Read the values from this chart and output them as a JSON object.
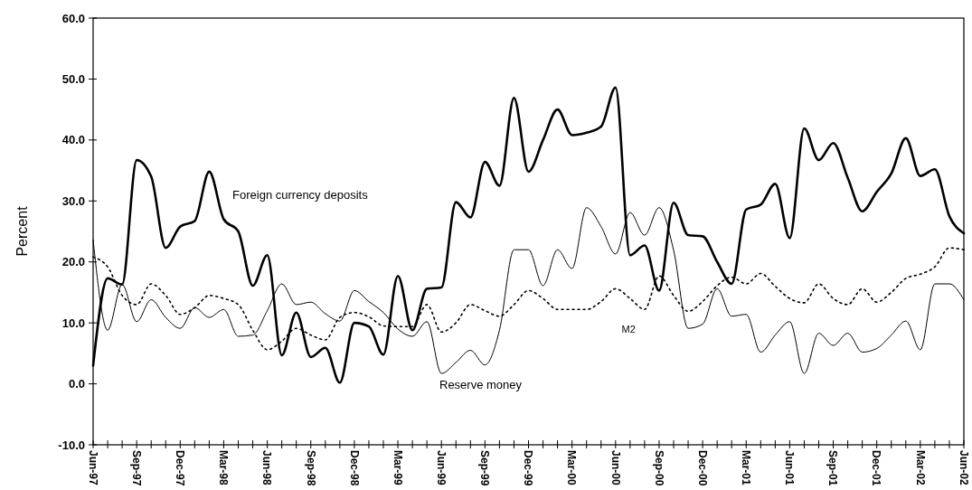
{
  "chart_data": {
    "type": "line",
    "ylabel": "Percent",
    "grid": false,
    "ylim": [
      -10,
      60
    ],
    "yticks": [
      {
        "value": -10,
        "label": "-10.0"
      },
      {
        "value": 0,
        "label": "0.0"
      },
      {
        "value": 10,
        "label": "10.0"
      },
      {
        "value": 20,
        "label": "20.0"
      },
      {
        "value": 30,
        "label": "30.0"
      },
      {
        "value": 40,
        "label": "40.0"
      },
      {
        "value": 50,
        "label": "50.0"
      },
      {
        "value": 60,
        "label": "60.0"
      }
    ],
    "categories": [
      "Jun-97",
      null,
      null,
      "Sep-97",
      null,
      null,
      "Dec-97",
      null,
      null,
      "Mar-98",
      null,
      null,
      "Jun-98",
      null,
      null,
      "Sep-98",
      null,
      null,
      "Dec-98",
      null,
      null,
      "Mar-99",
      null,
      null,
      "Jun-99",
      null,
      null,
      "Sep-99",
      null,
      null,
      "Dec-99",
      null,
      null,
      "Mar-00",
      null,
      null,
      "Jun-00",
      null,
      null,
      "Sep-00",
      null,
      null,
      "Dec-00",
      null,
      null,
      "Mar-01",
      null,
      null,
      "Jun-01",
      null,
      null,
      "Sep-01",
      null,
      null,
      "Dec-01",
      null,
      null,
      "Mar-02",
      null,
      null,
      "Jun-02"
    ],
    "series": [
      {
        "color": "#000000",
        "line_style": "solid",
        "values": [
          3,
          17.3,
          16.3,
          36.7,
          34,
          22.3,
          25.8,
          26.7,
          34.8,
          27,
          25,
          16.1,
          21.1,
          4.7,
          11.7,
          4.4,
          5.9,
          0.2,
          10,
          9.4,
          4.8,
          17.7,
          8.8,
          15.6,
          15.8,
          29.8,
          27.3,
          36.4,
          32.5,
          46.9,
          34.8,
          40,
          45,
          40.8,
          41.2,
          42.2,
          48.6,
          21.1,
          22.7,
          15.3,
          29.7,
          24.4,
          24.2,
          20,
          16.4,
          28.6,
          29.4,
          32.8,
          23.9,
          41.9,
          36.7,
          39.5,
          33.8,
          28.3,
          31.5,
          34.5,
          40.3,
          34.1,
          35.2,
          27.5,
          24.7
        ]
      },
      {
        "color": "#000000",
        "line_style": "solid",
        "values": [
          23.6,
          8.8,
          16.3,
          10.2,
          13.8,
          10.9,
          9.1,
          12.5,
          10.9,
          12.2,
          7.8,
          8,
          12,
          16.4,
          13,
          13.4,
          11.5,
          10.3,
          15.3,
          13.5,
          11.7,
          9,
          7.8,
          10.2,
          1.7,
          3.5,
          5.5,
          3.1,
          8.8,
          22,
          22,
          16.1,
          22,
          18.9,
          28.9,
          25.8,
          21.3,
          28.1,
          24.4,
          28.9,
          21.9,
          9.1,
          9.8,
          15.6,
          11.1,
          11.4,
          5.2,
          8,
          10.2,
          1.7,
          8.3,
          6.3,
          8.3,
          5.2,
          5.8,
          8,
          10.3,
          5.6,
          16.4,
          16.4,
          13.8
        ]
      },
      {
        "color": "#000000",
        "line_style": "dotted",
        "values": [
          20.8,
          19.2,
          14.5,
          13,
          16.4,
          14.5,
          11.4,
          12.5,
          14.5,
          14,
          13,
          8.8,
          5.6,
          7,
          9.1,
          8,
          7.2,
          10.9,
          11.7,
          11,
          9.5,
          9.4,
          9.4,
          13,
          8.5,
          10,
          13,
          12,
          11.1,
          13,
          15.3,
          14,
          12.2,
          12.2,
          12.2,
          13.5,
          15.6,
          14,
          12.2,
          17.7,
          14.5,
          11.9,
          13.5,
          16.1,
          17.5,
          16.4,
          18.1,
          16,
          14,
          13.3,
          16.4,
          14,
          13,
          15.6,
          13.4,
          15,
          17.3,
          18,
          19.2,
          22.3,
          22
        ]
      }
    ],
    "annotations": [
      "Foreign currency deposits",
      "M2",
      "Reserve money"
    ]
  }
}
